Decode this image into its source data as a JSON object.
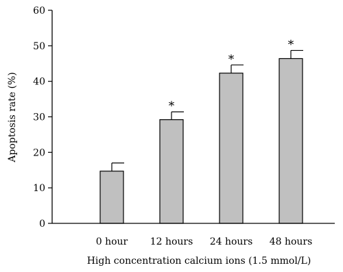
{
  "chart_data": {
    "type": "bar",
    "categories": [
      "0 hour",
      "12 hours",
      "24 hours",
      "48 hours"
    ],
    "values": [
      14.7,
      29.2,
      42.3,
      46.4
    ],
    "errors": [
      2.3,
      2.2,
      2.3,
      2.3
    ],
    "significance": [
      "",
      "*",
      "*",
      "*"
    ],
    "title": "",
    "xlabel": "High concentration calcium ions (1.5 mmol/L)",
    "ylabel": "Apoptosis rate (%)",
    "ylim": [
      0,
      60
    ],
    "yticks": [
      0,
      10,
      20,
      30,
      40,
      50,
      60
    ],
    "grid": false,
    "bar_color": "#c0c0c0",
    "edge_color": "#000000"
  }
}
